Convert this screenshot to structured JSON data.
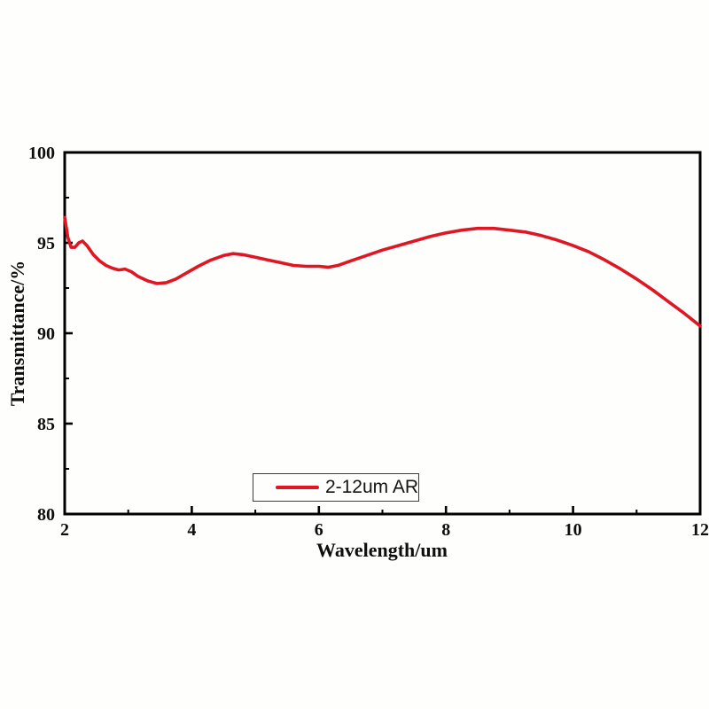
{
  "figure": {
    "background_color": "#fefefd",
    "axis_color": "#000000"
  },
  "legend": {
    "label": "2-12um AR",
    "line_color": "#de1723",
    "border_color": "#3c3c3c",
    "position": "bottom-center-inside"
  },
  "chart_data": {
    "type": "line",
    "title": "",
    "xlabel": "Wavelength/um",
    "ylabel": "Transmittance/%",
    "xlim": [
      2,
      12
    ],
    "ylim": [
      80,
      100
    ],
    "x_major_ticks": [
      2,
      4,
      6,
      8,
      10,
      12
    ],
    "x_minor_ticks": [
      3,
      5,
      7,
      9,
      11
    ],
    "y_major_ticks": [
      80,
      85,
      90,
      95,
      100
    ],
    "y_minor_ticks": [
      82.5,
      87.5,
      92.5,
      97.5
    ],
    "grid": false,
    "legend_position": "bottom-center-inside",
    "series": [
      {
        "name": "2-12um AR",
        "color": "#de1723",
        "line_width": 3.6,
        "x": [
          2.0,
          2.05,
          2.1,
          2.16,
          2.22,
          2.28,
          2.35,
          2.45,
          2.55,
          2.65,
          2.75,
          2.85,
          2.95,
          3.05,
          3.15,
          3.3,
          3.45,
          3.6,
          3.75,
          3.9,
          4.1,
          4.3,
          4.5,
          4.65,
          4.8,
          5.0,
          5.2,
          5.4,
          5.6,
          5.8,
          6.0,
          6.15,
          6.3,
          6.5,
          6.75,
          7.0,
          7.25,
          7.5,
          7.75,
          8.0,
          8.25,
          8.5,
          8.75,
          9.0,
          9.25,
          9.5,
          9.75,
          10.0,
          10.25,
          10.5,
          10.75,
          11.0,
          11.25,
          11.5,
          11.75,
          12.0
        ],
        "y": [
          96.4,
          95.3,
          94.75,
          94.75,
          95.0,
          95.1,
          94.85,
          94.35,
          94.0,
          93.75,
          93.6,
          93.5,
          93.55,
          93.4,
          93.15,
          92.9,
          92.75,
          92.8,
          93.0,
          93.3,
          93.7,
          94.05,
          94.3,
          94.4,
          94.35,
          94.2,
          94.05,
          93.9,
          93.75,
          93.7,
          93.7,
          93.65,
          93.75,
          94.0,
          94.3,
          94.6,
          94.85,
          95.1,
          95.35,
          95.55,
          95.7,
          95.8,
          95.8,
          95.7,
          95.6,
          95.4,
          95.15,
          94.85,
          94.5,
          94.05,
          93.55,
          93.0,
          92.4,
          91.75,
          91.1,
          90.4
        ]
      }
    ]
  }
}
